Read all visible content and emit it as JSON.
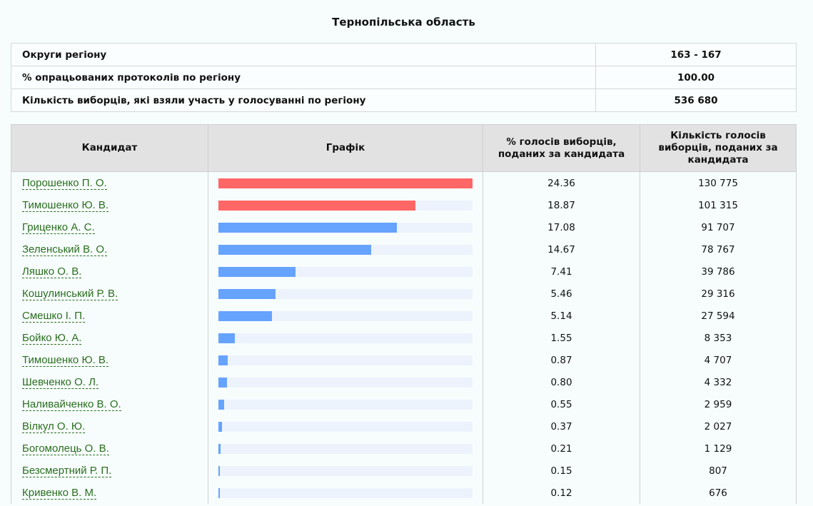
{
  "title": "Тернопільська область",
  "info": [
    {
      "label": "Округи регіону",
      "value": "163 - 167"
    },
    {
      "label": "% опрацьованих протоколів по регіону",
      "value": "100.00"
    },
    {
      "label": "Кількість виборців, які взяли участь у голосуванні по регіону",
      "value": "536 680"
    }
  ],
  "headers": {
    "candidate": "Кандидат",
    "chart": "Графік",
    "percent": "% голосів виборців, поданих за кандидата",
    "votes": "Кількість голосів виборців, поданих за кандидата"
  },
  "colors": {
    "leader": "#ff6666",
    "other": "#66a3ff",
    "track": "#edf3fc"
  },
  "chart_data": {
    "type": "bar",
    "max": 24.36,
    "rows": [
      {
        "name": "Порошенко П. О.",
        "percent": "24.36",
        "votes": "130 775",
        "highlight": true
      },
      {
        "name": "Тимошенко Ю. В.",
        "percent": "18.87",
        "votes": "101 315",
        "highlight": true
      },
      {
        "name": "Гриценко А. С.",
        "percent": "17.08",
        "votes": "91 707"
      },
      {
        "name": "Зеленський В. О.",
        "percent": "14.67",
        "votes": "78 767"
      },
      {
        "name": "Ляшко О. В.",
        "percent": "7.41",
        "votes": "39 786"
      },
      {
        "name": "Кошулинський Р. В.",
        "percent": "5.46",
        "votes": "29 316"
      },
      {
        "name": "Смешко І. П.",
        "percent": "5.14",
        "votes": "27 594"
      },
      {
        "name": "Бойко Ю. А.",
        "percent": "1.55",
        "votes": "8 353"
      },
      {
        "name": "Тимошенко Ю. В.",
        "percent": "0.87",
        "votes": "4 707"
      },
      {
        "name": "Шевченко О. Л.",
        "percent": "0.80",
        "votes": "4 332"
      },
      {
        "name": "Наливайченко В. О.",
        "percent": "0.55",
        "votes": "2 959"
      },
      {
        "name": "Вілкул О. Ю.",
        "percent": "0.37",
        "votes": "2 027"
      },
      {
        "name": "Богомолець О. В.",
        "percent": "0.21",
        "votes": "1 129"
      },
      {
        "name": "Безсмертний Р. П.",
        "percent": "0.15",
        "votes": "807"
      },
      {
        "name": "Кривенко В. М.",
        "percent": "0.12",
        "votes": "676"
      }
    ]
  }
}
